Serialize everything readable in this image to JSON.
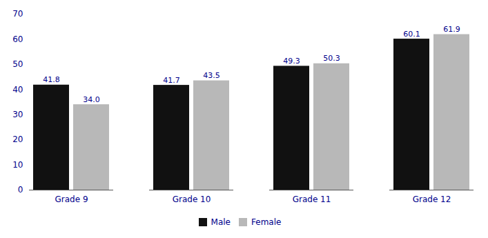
{
  "chart_data": {
    "type": "bar",
    "categories": [
      "Grade 9",
      "Grade 10",
      "Grade 11",
      "Grade 12"
    ],
    "series": [
      {
        "name": "Male",
        "color": "#111111",
        "values": [
          41.8,
          41.7,
          49.3,
          60.1
        ],
        "value_labels": [
          "41.8",
          "41.7",
          "49.3",
          "60.1"
        ]
      },
      {
        "name": "Female",
        "color": "#b8b8b8",
        "values": [
          34.0,
          43.5,
          50.3,
          61.9
        ],
        "value_labels": [
          "34.0",
          "43.5",
          "50.3",
          "61.9"
        ]
      }
    ],
    "ylim": [
      0,
      70
    ],
    "yticks": [
      0,
      10,
      20,
      30,
      40,
      50,
      60,
      70
    ],
    "data_labels": true,
    "legend": "bottom",
    "grid": false
  }
}
